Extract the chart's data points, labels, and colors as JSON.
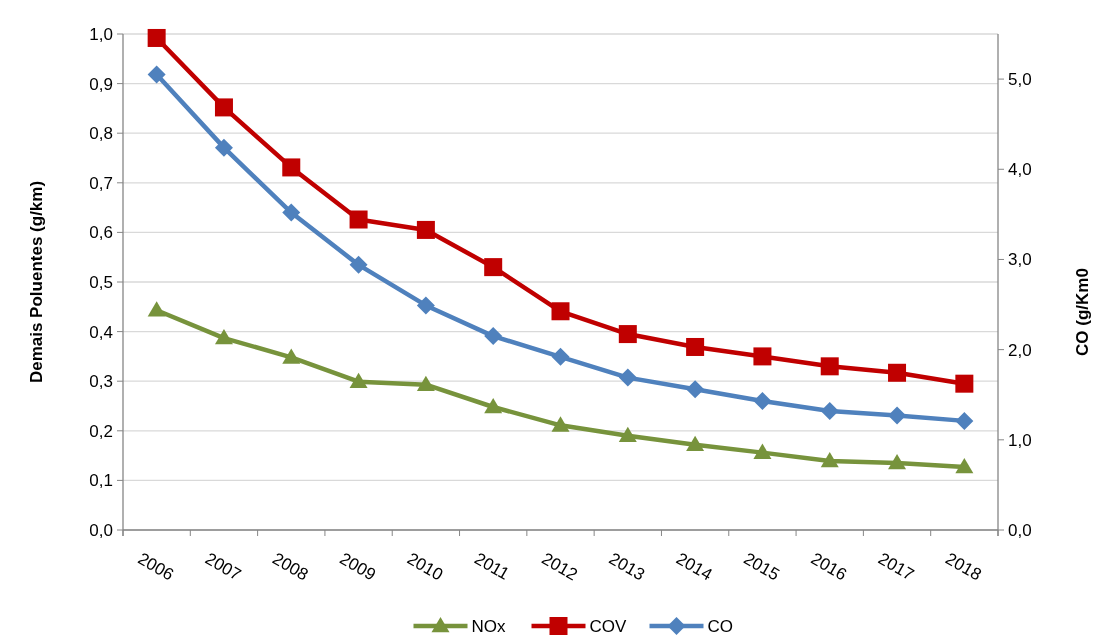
{
  "chart_data": {
    "type": "line",
    "ylabel": "Demais Poluentes (g/km)",
    "y2label": "CO (g/Km0",
    "categories": [
      "2006",
      "2007",
      "2008",
      "2009",
      "2010",
      "2011",
      "2012",
      "2013",
      "2014",
      "2015",
      "2016",
      "2017",
      "2018"
    ],
    "series": [
      {
        "name": "NOx",
        "color": "#77933c",
        "marker": "triangle",
        "values": [
          0.443,
          0.387,
          0.348,
          0.299,
          0.293,
          0.248,
          0.211,
          0.19,
          0.172,
          0.156,
          0.139,
          0.135,
          0.127
        ]
      },
      {
        "name": "COV",
        "color": "#c00000",
        "marker": "square",
        "values": [
          0.992,
          0.852,
          0.731,
          0.626,
          0.605,
          0.53,
          0.441,
          0.395,
          0.369,
          0.35,
          0.33,
          0.317,
          0.295
        ]
      },
      {
        "name": "CO",
        "color": "#4f81bd",
        "marker": "diamond",
        "axis": "y2",
        "values": [
          5.05,
          4.24,
          3.52,
          2.94,
          2.49,
          2.15,
          1.92,
          1.69,
          1.56,
          1.43,
          1.32,
          1.27,
          1.21
        ]
      }
    ],
    "ylim": [
      0,
      1
    ],
    "yticks": [
      {
        "value": 0,
        "label": "0,0"
      },
      {
        "value": 0.1,
        "label": "0,1"
      },
      {
        "value": 0.2,
        "label": "0,2"
      },
      {
        "value": 0.3,
        "label": "0,3"
      },
      {
        "value": 0.4,
        "label": "0,4"
      },
      {
        "value": 0.5,
        "label": "0,5"
      },
      {
        "value": 0.6,
        "label": "0,6"
      },
      {
        "value": 0.7,
        "label": "0,7"
      },
      {
        "value": 0.8,
        "label": "0,8"
      },
      {
        "value": 0.9,
        "label": "0,9"
      },
      {
        "value": 1,
        "label": "1,0"
      }
    ],
    "y2lim": [
      0,
      5.5
    ],
    "y2ticks": [
      {
        "value": 0,
        "label": "0,0"
      },
      {
        "value": 1,
        "label": "1,0"
      },
      {
        "value": 2,
        "label": "2,0"
      },
      {
        "value": 3,
        "label": "3,0"
      },
      {
        "value": 4,
        "label": "4,0"
      },
      {
        "value": 5,
        "label": "5,0"
      }
    ],
    "grid": "y",
    "legend": "bottom",
    "line_style": "solid"
  }
}
